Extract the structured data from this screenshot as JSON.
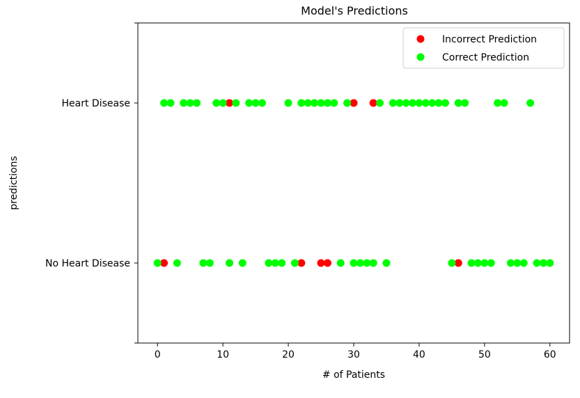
{
  "chart_data": {
    "type": "scatter",
    "title": "Model's Predictions",
    "xlabel": "# of Patients",
    "ylabel": "predictions",
    "xlim": [
      -3,
      63
    ],
    "ylim": [
      -0.5,
      1.5
    ],
    "xticks": [
      0,
      10,
      20,
      30,
      40,
      50,
      60
    ],
    "yticks": [
      {
        "value": 0,
        "label": "No Heart Disease"
      },
      {
        "value": 1,
        "label": "Heart Disease"
      }
    ],
    "legend_position": "top-right",
    "series": [
      {
        "name": "Incorrect Prediction",
        "color": "#ff0000",
        "points": [
          [
            1,
            0
          ],
          [
            22,
            0
          ],
          [
            25,
            0
          ],
          [
            26,
            0
          ],
          [
            46,
            0
          ],
          [
            11,
            1
          ],
          [
            30,
            1
          ],
          [
            33,
            1
          ]
        ]
      },
      {
        "name": "Correct Prediction",
        "color": "#00ff00",
        "points": [
          [
            0,
            0
          ],
          [
            3,
            0
          ],
          [
            7,
            0
          ],
          [
            8,
            0
          ],
          [
            11,
            0
          ],
          [
            13,
            0
          ],
          [
            17,
            0
          ],
          [
            18,
            0
          ],
          [
            19,
            0
          ],
          [
            21,
            0
          ],
          [
            28,
            0
          ],
          [
            30,
            0
          ],
          [
            31,
            0
          ],
          [
            32,
            0
          ],
          [
            33,
            0
          ],
          [
            35,
            0
          ],
          [
            45,
            0
          ],
          [
            48,
            0
          ],
          [
            49,
            0
          ],
          [
            50,
            0
          ],
          [
            51,
            0
          ],
          [
            54,
            0
          ],
          [
            55,
            0
          ],
          [
            56,
            0
          ],
          [
            58,
            0
          ],
          [
            59,
            0
          ],
          [
            60,
            0
          ],
          [
            1,
            1
          ],
          [
            2,
            1
          ],
          [
            4,
            1
          ],
          [
            5,
            1
          ],
          [
            6,
            1
          ],
          [
            9,
            1
          ],
          [
            10,
            1
          ],
          [
            12,
            1
          ],
          [
            14,
            1
          ],
          [
            15,
            1
          ],
          [
            16,
            1
          ],
          [
            20,
            1
          ],
          [
            22,
            1
          ],
          [
            23,
            1
          ],
          [
            24,
            1
          ],
          [
            25,
            1
          ],
          [
            26,
            1
          ],
          [
            27,
            1
          ],
          [
            29,
            1
          ],
          [
            34,
            1
          ],
          [
            36,
            1
          ],
          [
            37,
            1
          ],
          [
            38,
            1
          ],
          [
            39,
            1
          ],
          [
            40,
            1
          ],
          [
            41,
            1
          ],
          [
            42,
            1
          ],
          [
            43,
            1
          ],
          [
            44,
            1
          ],
          [
            46,
            1
          ],
          [
            47,
            1
          ],
          [
            52,
            1
          ],
          [
            53,
            1
          ],
          [
            57,
            1
          ]
        ]
      }
    ]
  }
}
